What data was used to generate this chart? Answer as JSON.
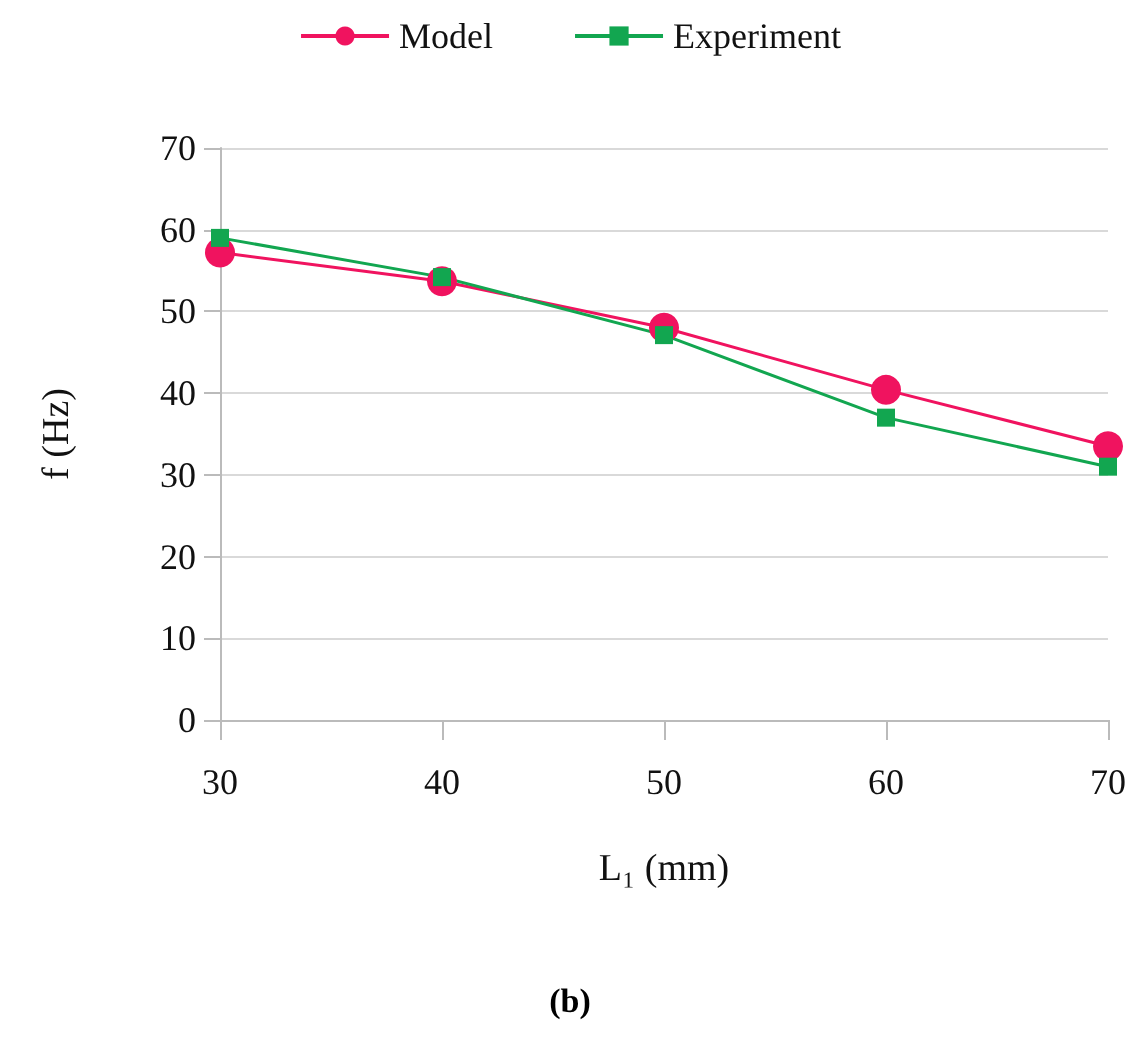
{
  "chart_data": {
    "type": "line",
    "xlabel": "L₁ (mm)",
    "ylabel": "f (Hz)",
    "x": [
      30,
      40,
      50,
      60,
      70
    ],
    "series": [
      {
        "name": "Model",
        "color": "#f0135f",
        "marker": "circle",
        "values": [
          57.2,
          53.7,
          48,
          40.4,
          33.5
        ]
      },
      {
        "name": "Experiment",
        "color": "#12a650",
        "marker": "square",
        "values": [
          59,
          54.2,
          47.1,
          37,
          31
        ]
      }
    ],
    "xlim": [
      30,
      70
    ],
    "xticks": [
      30,
      40,
      50,
      60,
      70
    ],
    "ylim": [
      0,
      70
    ],
    "yticks": [
      0,
      10,
      20,
      30,
      40,
      50,
      60,
      70
    ],
    "grid": "y",
    "legend": "top",
    "annotations": [
      "(b)"
    ]
  }
}
